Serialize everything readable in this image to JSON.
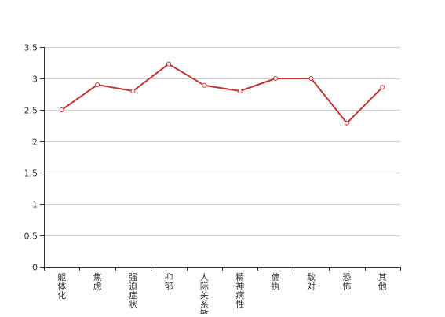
{
  "chart_data": {
    "type": "line",
    "categories": [
      "躯体化",
      "焦虑",
      "强迫症状",
      "抑郁",
      "人际关系敏感",
      "精神病性",
      "偏执",
      "敌对",
      "恐怖",
      "其他"
    ],
    "series": [
      {
        "values": [
          2.5,
          2.9,
          2.8,
          3.23,
          2.89,
          2.8,
          3.0,
          3.0,
          2.29,
          2.86
        ],
        "color": "#c23531"
      }
    ],
    "ylim": [
      0,
      3.5
    ],
    "yticks": [
      0,
      0.5,
      1,
      1.5,
      2,
      2.5,
      3,
      3.5
    ],
    "grid": true,
    "legend": "none"
  }
}
